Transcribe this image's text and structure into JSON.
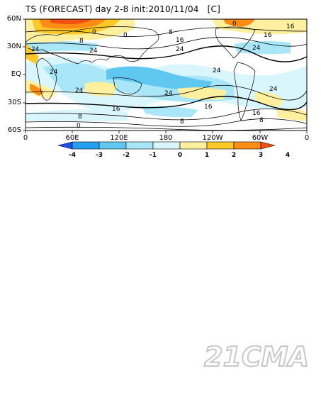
{
  "title": "TS (FORECAST) day 2-8 init:2010/11/04   [C]",
  "map": {
    "lat_labels": [
      "60N",
      "30N",
      "EQ",
      "30S",
      "60S"
    ],
    "lon_labels": [
      "0",
      "60E",
      "120E",
      "180",
      "120W",
      "60W",
      "0"
    ],
    "contour_labels": [
      "0",
      "0",
      "8",
      "16",
      "24",
      "24",
      "24",
      "8",
      "24",
      "24",
      "24",
      "16",
      "16",
      "8",
      "0",
      "0",
      "16",
      "24",
      "16",
      "8",
      "24",
      "16",
      "24",
      "8"
    ]
  },
  "colorbar": {
    "ticks": [
      "-4",
      "-3",
      "-2",
      "-1",
      "0",
      "1",
      "2",
      "3",
      "4"
    ],
    "colors": [
      "#1c50f0",
      "#24a0f0",
      "#60c8f0",
      "#a8e6f8",
      "#d8f6fb",
      "#fff0a0",
      "#ffc828",
      "#ff8c14",
      "#f05014"
    ]
  },
  "legend_colors": {
    "warm_strong": "#e85a1a",
    "warm_mid": "#f8a020",
    "warm_weak": "#fde06a",
    "cool_weak": "#bdf0f8",
    "cool_mid": "#64ccf0"
  },
  "watermark": "21CMA"
}
